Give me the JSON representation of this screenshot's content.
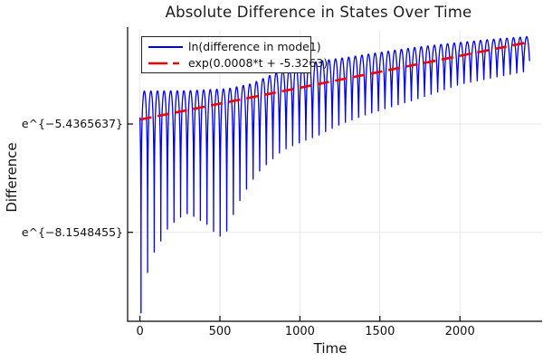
{
  "chart_data": {
    "type": "line",
    "title": "Absolute Difference in States Over Time",
    "xlabel": "Time",
    "ylabel": "Difference",
    "x_axis": {
      "ticks": [
        {
          "value": 0,
          "label": "0"
        },
        {
          "value": 500,
          "label": "500"
        },
        {
          "value": 1000,
          "label": "1000"
        },
        {
          "value": 1500,
          "label": "1500"
        },
        {
          "value": 2000,
          "label": "2000"
        }
      ],
      "xlim": [
        -77,
        2451
      ]
    },
    "y_axis": {
      "scale": "ln",
      "ticks": [
        {
          "value": -5.4365637,
          "label": "e^{−5.4365637}"
        },
        {
          "value": -8.1548455,
          "label": "e^{−8.1548455}"
        }
      ],
      "ylim_ln": [
        -10.39,
        -3.07
      ]
    },
    "grid": true,
    "legend": {
      "position": "top-left",
      "entries": [
        {
          "label": "ln(difference in mode1)",
          "color": "#0000ee",
          "style": "solid"
        },
        {
          "label": "exp(0.0008*t + -5.3263)",
          "color": "#f00000",
          "style": "dash"
        }
      ]
    },
    "series": [
      {
        "name": "ln(difference in mode1)",
        "color": "#0000ee",
        "style": "solid",
        "t_range": [
          0,
          2435
        ],
        "model": "ln_y(t) = ln( exp(U(t))*s + exp(L(t))*(1-s) ), s = |sin(pi*(t-spike_t0)/spike_period)|",
        "spike_t0": 7.0,
        "spike_period": 41.2,
        "upper_envelope_ln": [
          [
            0,
            -4.61
          ],
          [
            300,
            -4.6
          ],
          [
            550,
            -4.55
          ],
          [
            700,
            -4.42
          ],
          [
            850,
            -4.15
          ],
          [
            1000,
            -3.95
          ],
          [
            1150,
            -3.84
          ],
          [
            1300,
            -3.76
          ],
          [
            1450,
            -3.67
          ],
          [
            1600,
            -3.58
          ],
          [
            1750,
            -3.5
          ],
          [
            1900,
            -3.43
          ],
          [
            2050,
            -3.37
          ],
          [
            2200,
            -3.31
          ],
          [
            2435,
            -3.24
          ]
        ],
        "lower_envelope_ln": [
          [
            0,
            -10.35
          ],
          [
            50,
            -9.12
          ],
          [
            92,
            -8.62
          ],
          [
            134,
            -8.35
          ],
          [
            175,
            -8.05
          ],
          [
            216,
            -7.89
          ],
          [
            258,
            -7.76
          ],
          [
            300,
            -7.68
          ],
          [
            345,
            -7.77
          ],
          [
            386,
            -7.88
          ],
          [
            428,
            -7.97
          ],
          [
            470,
            -8.18
          ],
          [
            510,
            -8.27
          ],
          [
            552,
            -8.08
          ],
          [
            593,
            -7.6
          ],
          [
            635,
            -7.28
          ],
          [
            695,
            -6.88
          ],
          [
            760,
            -6.56
          ],
          [
            825,
            -6.33
          ],
          [
            890,
            -6.1
          ],
          [
            1000,
            -5.9
          ],
          [
            1110,
            -5.73
          ],
          [
            1250,
            -5.45
          ],
          [
            1400,
            -5.22
          ],
          [
            1550,
            -5.03
          ],
          [
            1700,
            -4.85
          ],
          [
            1850,
            -4.65
          ],
          [
            2000,
            -4.44
          ],
          [
            2150,
            -4.32
          ],
          [
            2300,
            -4.2
          ],
          [
            2435,
            -4.1
          ]
        ]
      },
      {
        "name": "exp(0.0008*t + -5.3263)",
        "color": "#f00000",
        "style": "dash",
        "t_range": [
          0,
          2435
        ],
        "model": "ln_y(t) = 0.0008*t - 5.3263",
        "slope": 0.0008,
        "intercept": -5.3263
      }
    ],
    "colors": {
      "series_blue": "#0000ee",
      "series_red": "#f00000",
      "grid": "#e9e9e9",
      "frame": "#000000",
      "background": "#ffffff"
    }
  }
}
